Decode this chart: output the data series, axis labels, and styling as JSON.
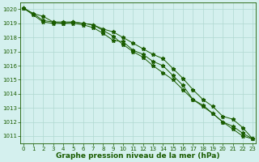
{
  "x": [
    0,
    1,
    2,
    3,
    4,
    5,
    6,
    7,
    8,
    9,
    10,
    11,
    12,
    13,
    14,
    15,
    16,
    17,
    18,
    19,
    20,
    21,
    22,
    23
  ],
  "line1": [
    1020.1,
    1019.7,
    1019.5,
    1019.1,
    1019.0,
    1019.1,
    1019.0,
    1018.9,
    1018.5,
    1018.1,
    1017.5,
    1017.0,
    1016.6,
    1016.0,
    1015.5,
    1015.0,
    1014.3,
    1013.6,
    1013.2,
    1012.6,
    1012.0,
    1011.5,
    1011.0,
    1010.8
  ],
  "line2": [
    1020.1,
    1019.6,
    1019.1,
    1019.0,
    1019.0,
    1019.0,
    1018.9,
    1018.7,
    1018.3,
    1017.8,
    1017.7,
    1017.1,
    1016.8,
    1016.3,
    1016.0,
    1015.3,
    1014.6,
    1013.6,
    1013.1,
    1012.6,
    1012.0,
    1011.7,
    1011.2,
    1010.8
  ],
  "line3": [
    1020.1,
    1019.7,
    1019.2,
    1019.1,
    1019.1,
    1019.1,
    1019.0,
    1018.9,
    1018.6,
    1018.4,
    1018.0,
    1017.6,
    1017.2,
    1016.8,
    1016.5,
    1015.8,
    1015.1,
    1014.3,
    1013.6,
    1013.1,
    1012.4,
    1012.2,
    1011.6,
    1010.8
  ],
  "bg_color": "#d4f0ee",
  "grid_color": "#b0d8d0",
  "line_color": "#1a5c00",
  "marker_color": "#1a5c00",
  "title_color": "#1a5c00",
  "tick_color": "#1a5c00",
  "ylim": [
    1010.5,
    1020.5
  ],
  "yticks": [
    1011,
    1012,
    1013,
    1014,
    1015,
    1016,
    1017,
    1018,
    1019,
    1020
  ],
  "xlabel": "Graphe pression niveau de la mer (hPa)",
  "xlabel_fontsize": 6.5,
  "tick_fontsize": 5.0
}
